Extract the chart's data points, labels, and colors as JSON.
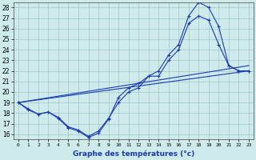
{
  "xlabel": "Graphe des températures (°c)",
  "xlim": [
    -0.5,
    23.5
  ],
  "ylim": [
    15.5,
    28.5
  ],
  "xticks": [
    0,
    1,
    2,
    3,
    4,
    5,
    6,
    7,
    8,
    9,
    10,
    11,
    12,
    13,
    14,
    15,
    16,
    17,
    18,
    19,
    20,
    21,
    22,
    23
  ],
  "yticks": [
    16,
    17,
    18,
    19,
    20,
    21,
    22,
    23,
    24,
    25,
    26,
    27,
    28
  ],
  "bg_color": "#ceeaea",
  "line_color": "#1a3ab5",
  "grid_color": "#a0c8c8",
  "series": [
    {
      "x": [
        0,
        1,
        2,
        3,
        4,
        5,
        6,
        7,
        8,
        9,
        10,
        11,
        12,
        13,
        14,
        15,
        16,
        17,
        18,
        19,
        20,
        21,
        22,
        23
      ],
      "y": [
        19,
        18.3,
        17.9,
        18.1,
        17.5,
        16.6,
        16.3,
        15.7,
        16.1,
        17.4,
        19.5,
        20.4,
        20.8,
        21.5,
        22.0,
        23.5,
        24.5,
        27.2,
        28.5,
        28.0,
        26.2,
        22.5,
        22.0,
        22.0
      ],
      "marker": true
    },
    {
      "x": [
        0,
        1,
        2,
        3,
        4,
        5,
        6,
        7,
        8,
        9,
        10,
        11,
        12,
        13,
        14,
        15,
        16,
        17,
        18,
        19,
        20,
        21,
        22,
        23
      ],
      "y": [
        19,
        18.4,
        17.9,
        18.1,
        17.6,
        16.7,
        16.4,
        15.8,
        16.3,
        17.5,
        19.0,
        20.0,
        20.4,
        21.5,
        21.5,
        23.0,
        24.0,
        26.5,
        27.2,
        26.8,
        24.5,
        22.5,
        22.0,
        22.0
      ],
      "marker": true
    },
    {
      "x": [
        0,
        23
      ],
      "y": [
        19.0,
        22.0
      ],
      "marker": false
    },
    {
      "x": [
        0,
        23
      ],
      "y": [
        19.0,
        22.5
      ],
      "marker": false
    }
  ]
}
